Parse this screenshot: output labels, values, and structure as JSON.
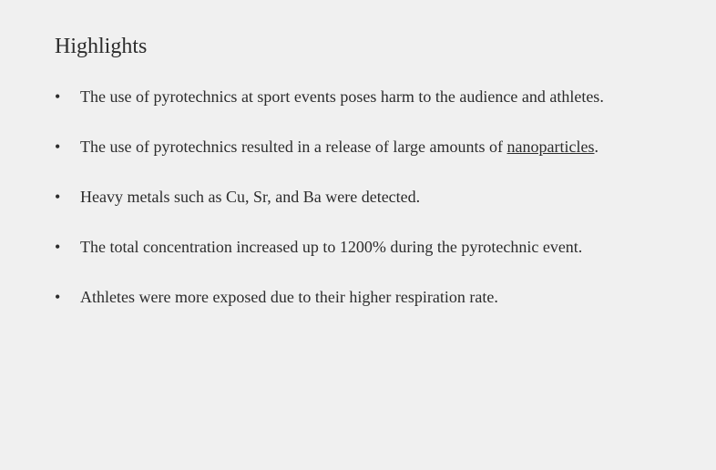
{
  "heading": "Highlights",
  "text_color": "#2c2c2c",
  "background_color": "#f0f0f0",
  "heading_fontsize": 24,
  "body_fontsize": 18,
  "bullets": [
    {
      "plain": true,
      "text": "The use of pyrotechnics at sport events poses harm to the audience and athletes."
    },
    {
      "plain": false,
      "prefix": "The use of pyrotechnics resulted in a release of large amounts of ",
      "underlined": "nanoparticles",
      "suffix": "."
    },
    {
      "plain": true,
      "text": "Heavy metals such as Cu, Sr, and Ba were detected."
    },
    {
      "plain": true,
      "text": "The total concentration increased up to 1200% during the pyrotechnic event."
    },
    {
      "plain": true,
      "text": "Athletes were more exposed due to their higher respiration rate."
    }
  ]
}
